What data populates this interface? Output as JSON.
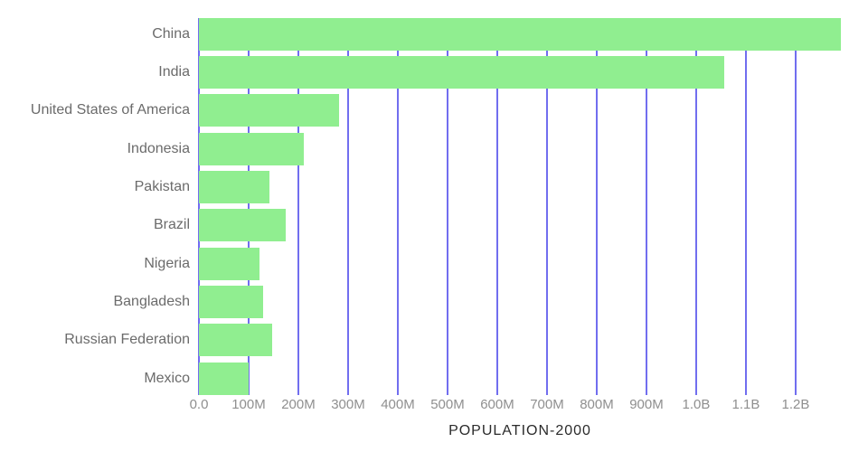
{
  "chart_data": {
    "type": "bar",
    "orientation": "horizontal",
    "title": "",
    "xlabel": "POPULATION-2000",
    "ylabel": "",
    "unit": "people",
    "categories": [
      "China",
      "India",
      "United States of America",
      "Indonesia",
      "Pakistan",
      "Brazil",
      "Nigeria",
      "Bangladesh",
      "Russian Federation",
      "Mexico"
    ],
    "values_millions": [
      1291,
      1057,
      282,
      211,
      142,
      175,
      122,
      129,
      147,
      100
    ],
    "xlim_millions": [
      0,
      1291
    ],
    "x_ticks": [
      {
        "value_millions": 0,
        "label": "0.0"
      },
      {
        "value_millions": 100,
        "label": "100M"
      },
      {
        "value_millions": 200,
        "label": "200M"
      },
      {
        "value_millions": 300,
        "label": "300M"
      },
      {
        "value_millions": 400,
        "label": "400M"
      },
      {
        "value_millions": 500,
        "label": "500M"
      },
      {
        "value_millions": 600,
        "label": "600M"
      },
      {
        "value_millions": 700,
        "label": "700M"
      },
      {
        "value_millions": 800,
        "label": "800M"
      },
      {
        "value_millions": 900,
        "label": "900M"
      },
      {
        "value_millions": 1000,
        "label": "1.0B"
      },
      {
        "value_millions": 1100,
        "label": "1.1B"
      },
      {
        "value_millions": 1200,
        "label": "1.2B"
      }
    ],
    "grid": "vertical-gridlines-at-every-tick",
    "legend": "none",
    "style": {
      "bar_color": "#90EE90",
      "gridline_color": "#716EEF",
      "y_label_color": "#6B6B6B",
      "tick_label_color": "#8F8F8F",
      "axis_title_color": "#2B2B2B",
      "background_color": "#FFFFFF"
    }
  }
}
